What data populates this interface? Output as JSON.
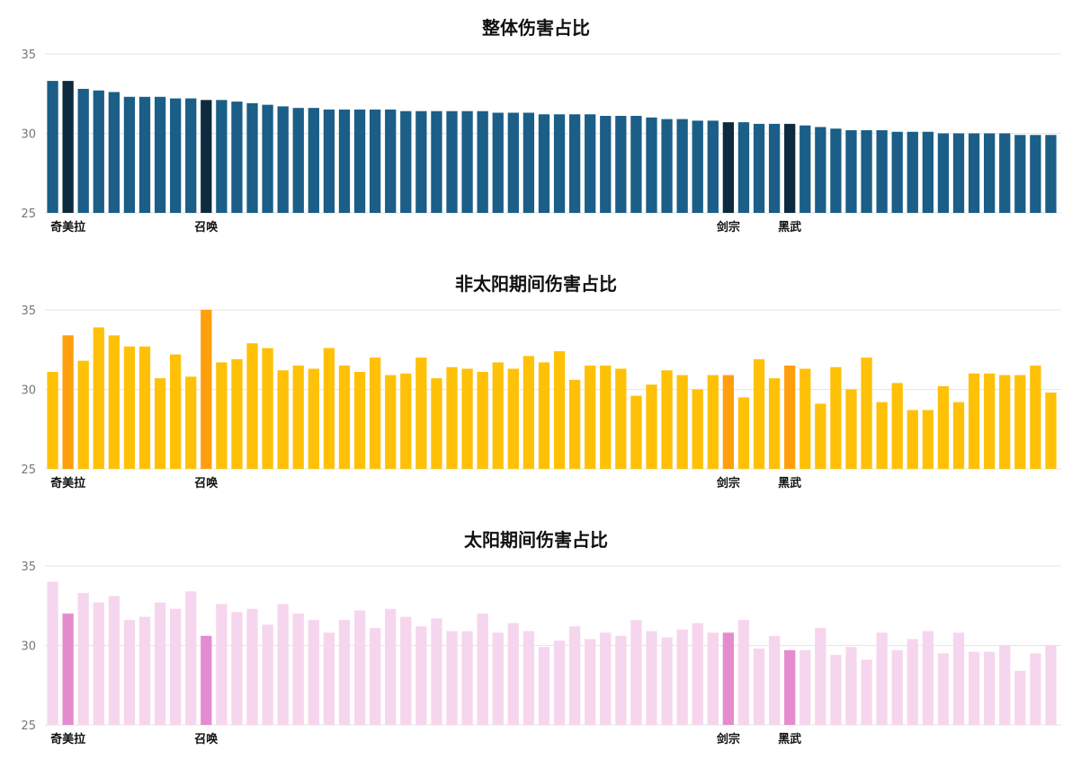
{
  "chart_data": [
    {
      "type": "bar",
      "title": "整体伤害占比",
      "ylim": [
        25,
        35
      ],
      "yticks": [
        25,
        30,
        35
      ],
      "grid": true,
      "color": "#1b5e87",
      "highlight_color": "#0d2a3e",
      "highlight_indices": [
        1,
        10,
        44,
        48
      ],
      "highlight_labels": [
        {
          "index": 1,
          "label": "奇美拉"
        },
        {
          "index": 10,
          "label": "召唤"
        },
        {
          "index": 44,
          "label": "剑宗"
        },
        {
          "index": 48,
          "label": "黑武"
        }
      ],
      "values": [
        33.3,
        33.3,
        32.8,
        32.7,
        32.6,
        32.3,
        32.3,
        32.3,
        32.2,
        32.2,
        32.1,
        32.1,
        32.0,
        31.9,
        31.8,
        31.7,
        31.6,
        31.6,
        31.5,
        31.5,
        31.5,
        31.5,
        31.5,
        31.4,
        31.4,
        31.4,
        31.4,
        31.4,
        31.4,
        31.3,
        31.3,
        31.3,
        31.2,
        31.2,
        31.2,
        31.2,
        31.1,
        31.1,
        31.1,
        31.0,
        30.9,
        30.9,
        30.8,
        30.8,
        30.7,
        30.7,
        30.6,
        30.6,
        30.6,
        30.5,
        30.4,
        30.3,
        30.2,
        30.2,
        30.2,
        30.1,
        30.1,
        30.1,
        30.0,
        30.0,
        30.0,
        30.0,
        30.0,
        29.9,
        29.9,
        29.9
      ]
    },
    {
      "type": "bar",
      "title": "非太阳期间伤害占比",
      "ylim": [
        25,
        35
      ],
      "yticks": [
        25,
        30,
        35
      ],
      "grid": true,
      "color": "#ffc107",
      "highlight_color": "#ff9f0e",
      "highlight_indices": [
        1,
        10,
        44,
        48
      ],
      "highlight_labels": [
        {
          "index": 1,
          "label": "奇美拉"
        },
        {
          "index": 10,
          "label": "召唤"
        },
        {
          "index": 44,
          "label": "剑宗"
        },
        {
          "index": 48,
          "label": "黑武"
        }
      ],
      "values": [
        31.1,
        33.4,
        31.8,
        33.9,
        33.4,
        32.7,
        32.7,
        30.7,
        32.2,
        30.8,
        35.0,
        31.7,
        31.9,
        32.9,
        32.6,
        31.2,
        31.5,
        31.3,
        32.6,
        31.5,
        31.1,
        32.0,
        30.9,
        31.0,
        32.0,
        30.7,
        31.4,
        31.3,
        31.1,
        31.7,
        31.3,
        32.1,
        31.7,
        32.4,
        30.6,
        31.5,
        31.5,
        31.3,
        29.6,
        30.3,
        31.2,
        30.9,
        30.0,
        30.9,
        30.9,
        29.5,
        31.9,
        30.7,
        31.5,
        31.3,
        29.1,
        31.4,
        30.0,
        32.0,
        29.2,
        30.4,
        28.7,
        28.7,
        30.2,
        29.2,
        31.0,
        31.0,
        30.9,
        30.9,
        31.5,
        29.8
      ]
    },
    {
      "type": "bar",
      "title": "太阳期间伤害占比",
      "ylim": [
        25,
        35
      ],
      "yticks": [
        25,
        30,
        35
      ],
      "grid": true,
      "color": "#f6d6ee",
      "highlight_color": "#e58bd0",
      "highlight_indices": [
        1,
        10,
        44,
        48
      ],
      "highlight_labels": [
        {
          "index": 1,
          "label": "奇美拉"
        },
        {
          "index": 10,
          "label": "召唤"
        },
        {
          "index": 44,
          "label": "剑宗"
        },
        {
          "index": 48,
          "label": "黑武"
        }
      ],
      "values": [
        34.0,
        32.0,
        33.3,
        32.7,
        33.1,
        31.6,
        31.8,
        32.7,
        32.3,
        33.4,
        30.6,
        32.6,
        32.1,
        32.3,
        31.3,
        32.6,
        32.0,
        31.6,
        30.8,
        31.6,
        32.2,
        31.1,
        32.3,
        31.8,
        31.2,
        31.7,
        30.9,
        30.9,
        32.0,
        30.8,
        31.4,
        30.9,
        29.9,
        30.3,
        31.2,
        30.4,
        30.8,
        30.6,
        31.6,
        30.9,
        30.5,
        31.0,
        31.4,
        30.8,
        30.8,
        31.6,
        29.8,
        30.6,
        29.7,
        29.7,
        31.1,
        29.4,
        29.9,
        29.1,
        30.8,
        29.7,
        30.4,
        30.9,
        29.5,
        30.8,
        29.6,
        29.6,
        30.0,
        28.4,
        29.5,
        30.0
      ]
    }
  ]
}
